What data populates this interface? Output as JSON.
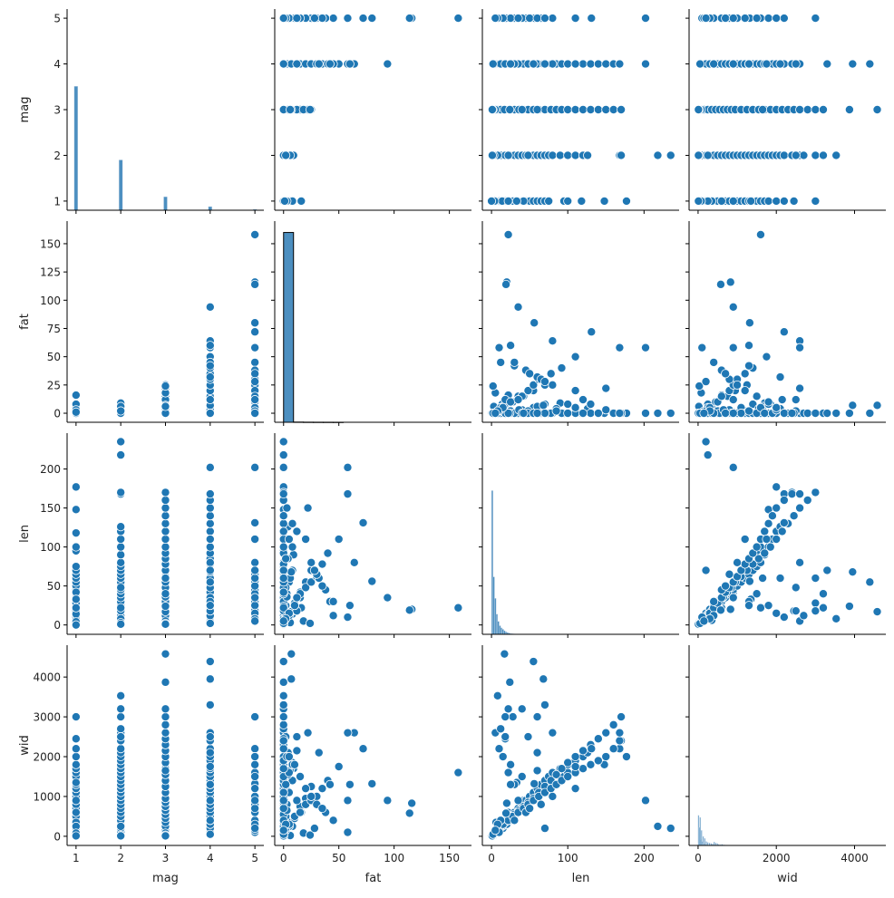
{
  "chart_data": {
    "type": "pairplot",
    "variables": [
      "mag",
      "fat",
      "len",
      "wid"
    ],
    "axis_limits": {
      "mag": [
        0.8,
        5.2
      ],
      "fat": [
        -8,
        170
      ],
      "len": [
        -12,
        246
      ],
      "wid": [
        -230,
        4800
      ]
    },
    "x_ticks": {
      "mag": [
        1,
        2,
        3,
        4,
        5
      ],
      "fat": [
        0,
        50,
        100,
        150
      ],
      "len": [
        0,
        100,
        200
      ],
      "wid": [
        0,
        2000,
        4000
      ]
    },
    "y_ticks": {
      "mag": [
        1,
        2,
        3,
        4,
        5
      ],
      "fat": [
        0,
        25,
        50,
        75,
        100,
        125,
        150
      ],
      "len": [
        0,
        50,
        100,
        150,
        200
      ],
      "wid": [
        0,
        1000,
        2000,
        3000,
        4000
      ]
    },
    "point_color": "#1f77b4",
    "histogram_color": "#4c8fc0",
    "grid": false,
    "diagonal_histograms": {
      "mag": {
        "start": 0.96,
        "bin_width": 0.08,
        "bin_step": 1,
        "counts": [
          13800,
          5600,
          1500,
          400,
          100
        ],
        "ymax": 22400
      },
      "fat": {
        "start": 0,
        "bin_width": 9,
        "bin_step": 9,
        "counts": [
          1000,
          1,
          0.5,
          0.3,
          0.2,
          0.1
        ],
        "ymax": 1060
      },
      "len": {
        "start": 0,
        "bin_width": 2,
        "bin_step": 2,
        "counts": [
          1000,
          400,
          250,
          140,
          90,
          60,
          45,
          35,
          25,
          18,
          12,
          9,
          6,
          4,
          3,
          2,
          1
        ],
        "ymax": 1400
      },
      "wid": {
        "start": 0,
        "bin_width": 18,
        "bin_step": 20,
        "counts": [
          300,
          180,
          280,
          60,
          150,
          40,
          90,
          20,
          70,
          10,
          40,
          5,
          30,
          4,
          25,
          3,
          20,
          8,
          15,
          2,
          35,
          3,
          25,
          2,
          20,
          1,
          10,
          1,
          8,
          1,
          12,
          1,
          6,
          1,
          4,
          1,
          3,
          1,
          2,
          1,
          2,
          0,
          1,
          0,
          1,
          0,
          1,
          0,
          2,
          0,
          1
        ],
        "ymax": 2000
      }
    },
    "records_columns": [
      "mag",
      "fat",
      "len",
      "wid"
    ],
    "records": [
      [
        1,
        0,
        2,
        30
      ],
      [
        1,
        0,
        5,
        50
      ],
      [
        1,
        0,
        8,
        100
      ],
      [
        1,
        0,
        12,
        150
      ],
      [
        1,
        0,
        1,
        20
      ],
      [
        1,
        0,
        3,
        40
      ],
      [
        1,
        0,
        15,
        200
      ],
      [
        1,
        0,
        20,
        300
      ],
      [
        1,
        0,
        25,
        400
      ],
      [
        1,
        0,
        30,
        500
      ],
      [
        1,
        0,
        35,
        600
      ],
      [
        1,
        0,
        40,
        700
      ],
      [
        1,
        0,
        45,
        800
      ],
      [
        1,
        1,
        50,
        900
      ],
      [
        1,
        0,
        55,
        1000
      ],
      [
        1,
        0,
        60,
        1100
      ],
      [
        1,
        2,
        65,
        1200
      ],
      [
        1,
        0,
        70,
        1300
      ],
      [
        1,
        0,
        75,
        1400
      ],
      [
        1,
        0,
        95,
        1500
      ],
      [
        1,
        0,
        100,
        1600
      ],
      [
        1,
        0,
        118,
        1700
      ],
      [
        1,
        0,
        148,
        1800
      ],
      [
        1,
        0,
        177,
        2000
      ],
      [
        1,
        0,
        10,
        2200
      ],
      [
        1,
        0,
        18,
        2450
      ],
      [
        1,
        0,
        28,
        3000
      ],
      [
        1,
        5,
        6,
        350
      ],
      [
        1,
        8,
        14,
        250
      ],
      [
        1,
        16,
        22,
        600
      ],
      [
        1,
        3,
        4,
        80
      ],
      [
        1,
        0,
        0,
        10
      ],
      [
        1,
        0,
        42,
        900
      ],
      [
        1,
        1,
        33,
        1350
      ],
      [
        2,
        0,
        2,
        50
      ],
      [
        2,
        0,
        6,
        100
      ],
      [
        2,
        0,
        10,
        200
      ],
      [
        2,
        1,
        15,
        300
      ],
      [
        2,
        0,
        20,
        400
      ],
      [
        2,
        2,
        25,
        500
      ],
      [
        2,
        0,
        30,
        600
      ],
      [
        2,
        0,
        35,
        700
      ],
      [
        2,
        3,
        40,
        800
      ],
      [
        2,
        0,
        45,
        900
      ],
      [
        2,
        0,
        50,
        1000
      ],
      [
        2,
        5,
        55,
        1100
      ],
      [
        2,
        0,
        60,
        1200
      ],
      [
        2,
        0,
        65,
        1300
      ],
      [
        2,
        8,
        70,
        1400
      ],
      [
        2,
        0,
        75,
        1500
      ],
      [
        2,
        0,
        80,
        1600
      ],
      [
        2,
        9,
        90,
        1700
      ],
      [
        2,
        0,
        100,
        1800
      ],
      [
        2,
        0,
        110,
        1900
      ],
      [
        2,
        0,
        120,
        2000
      ],
      [
        2,
        4,
        126,
        2100
      ],
      [
        2,
        0,
        168,
        2200
      ],
      [
        2,
        0,
        170,
        2400
      ],
      [
        2,
        0,
        235,
        200
      ],
      [
        2,
        0,
        218,
        250
      ],
      [
        2,
        0,
        5,
        2600
      ],
      [
        2,
        0,
        12,
        2700
      ],
      [
        2,
        0,
        18,
        3000
      ],
      [
        2,
        0,
        22,
        3200
      ],
      [
        2,
        0,
        8,
        3530
      ],
      [
        2,
        6,
        3,
        20
      ],
      [
        2,
        0,
        1,
        10
      ],
      [
        2,
        2,
        48,
        2500
      ],
      [
        3,
        0,
        3,
        50
      ],
      [
        3,
        2,
        8,
        150
      ],
      [
        3,
        5,
        12,
        250
      ],
      [
        3,
        0,
        18,
        350
      ],
      [
        3,
        10,
        24,
        450
      ],
      [
        3,
        0,
        30,
        550
      ],
      [
        3,
        3,
        36,
        650
      ],
      [
        3,
        15,
        42,
        750
      ],
      [
        3,
        0,
        48,
        850
      ],
      [
        3,
        20,
        55,
        950
      ],
      [
        3,
        0,
        62,
        1100
      ],
      [
        3,
        25,
        70,
        1250
      ],
      [
        3,
        0,
        78,
        1400
      ],
      [
        3,
        4,
        85,
        1550
      ],
      [
        3,
        0,
        92,
        1700
      ],
      [
        3,
        8,
        100,
        1850
      ],
      [
        3,
        0,
        110,
        2000
      ],
      [
        3,
        12,
        120,
        2150
      ],
      [
        3,
        0,
        130,
        2300
      ],
      [
        3,
        0,
        140,
        2450
      ],
      [
        3,
        22,
        150,
        2600
      ],
      [
        3,
        0,
        160,
        2800
      ],
      [
        3,
        0,
        170,
        3000
      ],
      [
        3,
        7,
        17,
        4580
      ],
      [
        3,
        0,
        24,
        3870
      ],
      [
        3,
        0,
        40,
        3200
      ],
      [
        3,
        18,
        5,
        80
      ],
      [
        3,
        24,
        2,
        30
      ],
      [
        3,
        0,
        1,
        10
      ],
      [
        3,
        6,
        60,
        1650
      ],
      [
        4,
        0,
        5,
        100
      ],
      [
        4,
        2,
        10,
        200
      ],
      [
        4,
        5,
        15,
        300
      ],
      [
        4,
        0,
        22,
        400
      ],
      [
        4,
        10,
        28,
        500
      ],
      [
        4,
        15,
        35,
        600
      ],
      [
        4,
        0,
        42,
        700
      ],
      [
        4,
        20,
        48,
        800
      ],
      [
        4,
        25,
        55,
        900
      ],
      [
        4,
        30,
        62,
        1000
      ],
      [
        4,
        0,
        70,
        1100
      ],
      [
        4,
        35,
        78,
        1200
      ],
      [
        4,
        2,
        85,
        1300
      ],
      [
        4,
        40,
        92,
        1400
      ],
      [
        4,
        0,
        100,
        1500
      ],
      [
        4,
        5,
        110,
        1600
      ],
      [
        4,
        0,
        120,
        1700
      ],
      [
        4,
        8,
        130,
        1800
      ],
      [
        4,
        0,
        140,
        1900
      ],
      [
        4,
        3,
        150,
        2000
      ],
      [
        4,
        0,
        160,
        2200
      ],
      [
        4,
        0,
        168,
        2400
      ],
      [
        4,
        0,
        202,
        900
      ],
      [
        4,
        94,
        35,
        900
      ],
      [
        4,
        64,
        80,
        2600
      ],
      [
        4,
        58,
        168,
        2600
      ],
      [
        4,
        50,
        110,
        1750
      ],
      [
        4,
        45,
        12,
        400
      ],
      [
        4,
        42,
        30,
        1300
      ],
      [
        4,
        32,
        60,
        2100
      ],
      [
        4,
        7,
        68,
        3950
      ],
      [
        4,
        0,
        55,
        4390
      ],
      [
        4,
        0,
        70,
        3300
      ],
      [
        4,
        0,
        2,
        50
      ],
      [
        4,
        12,
        18,
        2500
      ],
      [
        4,
        60,
        25,
        1300
      ],
      [
        5,
        158,
        22,
        1600
      ],
      [
        5,
        116,
        20,
        830
      ],
      [
        5,
        114,
        19,
        580
      ],
      [
        5,
        80,
        56,
        1320
      ],
      [
        5,
        72,
        131,
        2200
      ],
      [
        5,
        58,
        202,
        900
      ],
      [
        5,
        58,
        10,
        100
      ],
      [
        5,
        45,
        30,
        400
      ],
      [
        5,
        38,
        45,
        600
      ],
      [
        5,
        30,
        65,
        800
      ],
      [
        5,
        25,
        80,
        1000
      ],
      [
        5,
        20,
        110,
        1200
      ],
      [
        5,
        15,
        40,
        1500
      ],
      [
        5,
        10,
        25,
        1800
      ],
      [
        5,
        5,
        15,
        2000
      ],
      [
        5,
        2,
        8,
        300
      ],
      [
        5,
        0,
        5,
        150
      ],
      [
        5,
        35,
        50,
        700
      ],
      [
        5,
        0,
        60,
        3000
      ],
      [
        5,
        28,
        70,
        200
      ],
      [
        5,
        12,
        35,
        900
      ]
    ]
  }
}
